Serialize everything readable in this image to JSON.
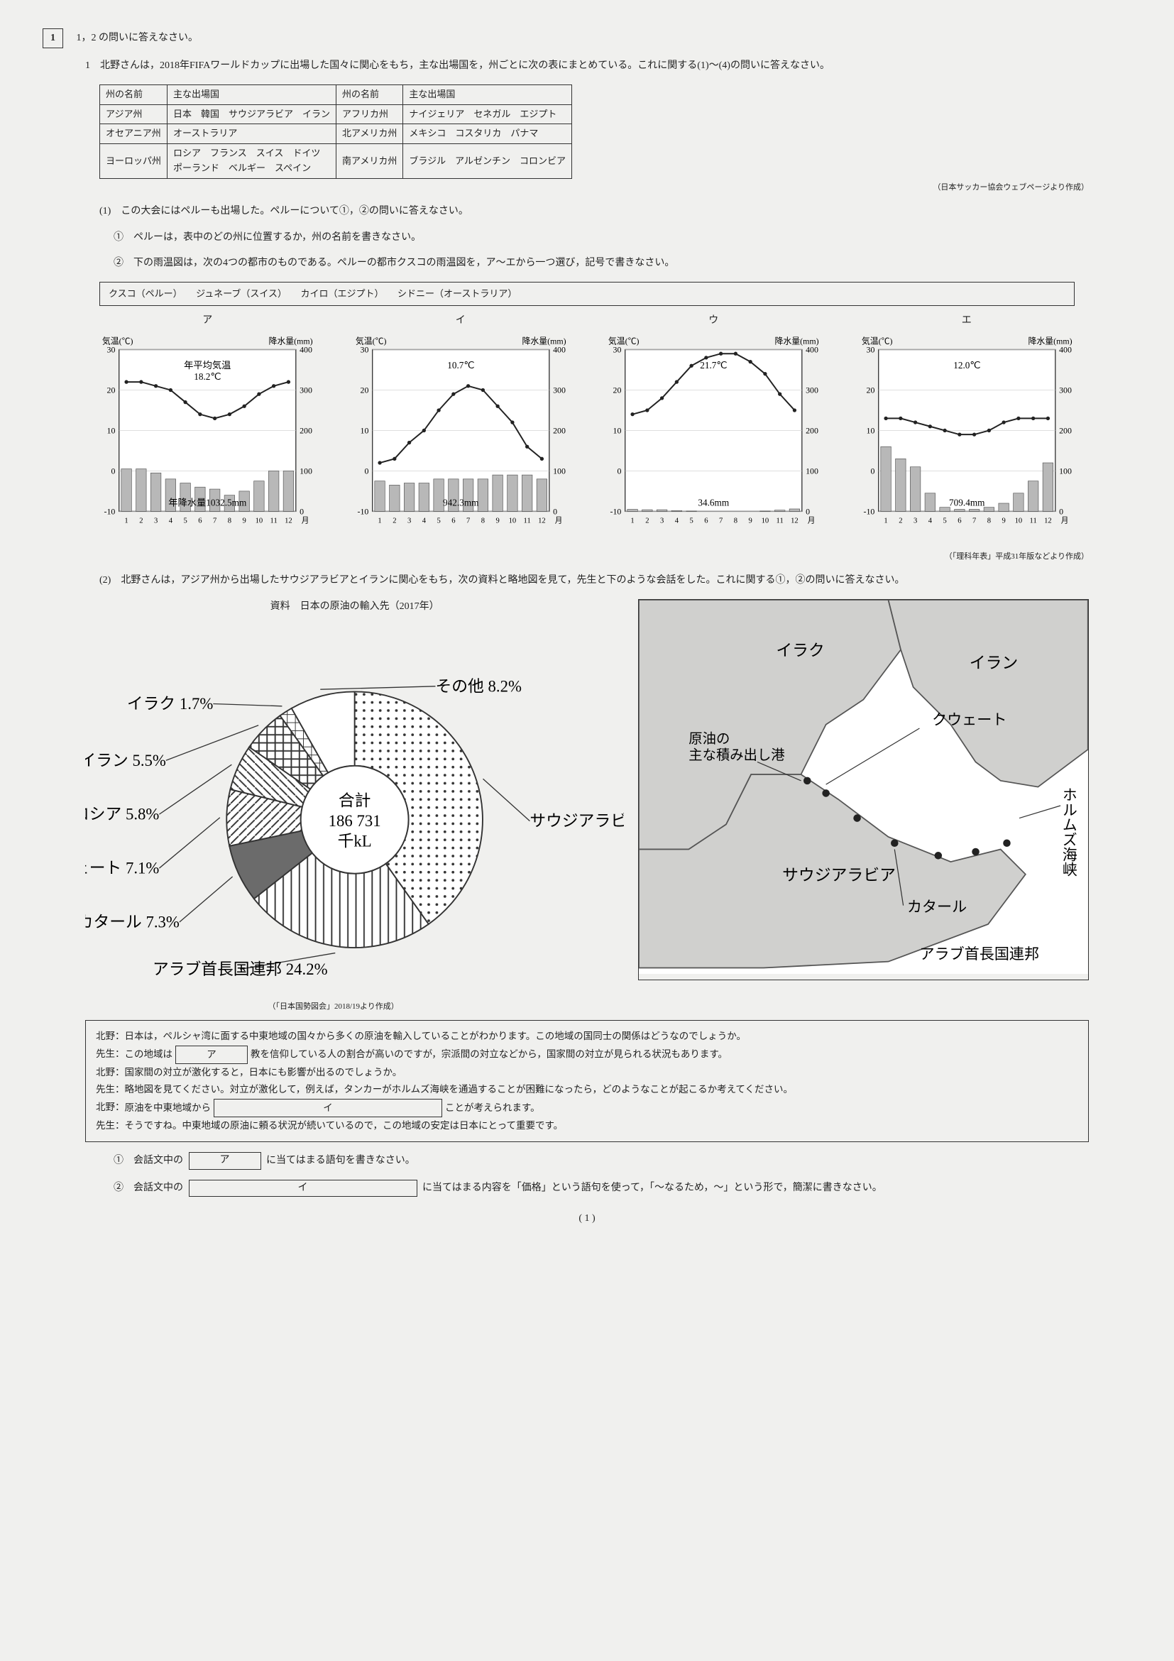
{
  "main_q": "1",
  "main_instr": "1，2 の問いに答えなさい。",
  "q1_text": "1　北野さんは，2018年FIFAワールドカップに出場した国々に関心をもち，主な出場国を，州ごとに次の表にまとめている。これに関する(1)～(4)の問いに答えなさい。",
  "table": {
    "headers": [
      "州の名前",
      "主な出場国",
      "州の名前",
      "主な出場国"
    ],
    "rows": [
      [
        "アジア州",
        "日本　韓国　サウジアラビア　イラン",
        "アフリカ州",
        "ナイジェリア　セネガル　エジプト"
      ],
      [
        "オセアニア州",
        "オーストラリア",
        "北アメリカ州",
        "メキシコ　コスタリカ　パナマ"
      ],
      [
        "ヨーロッパ州",
        "ロシア　フランス　スイス　ドイツ\nポーランド　ベルギー　スペイン",
        "南アメリカ州",
        "ブラジル　アルゼンチン　コロンビア"
      ]
    ],
    "source": "（日本サッカー協会ウェブページより作成）"
  },
  "q1_1": "(1)　この大会にはペルーも出場した。ペルーについて①，②の問いに答えなさい。",
  "q1_1_1": "①　ペルーは，表中のどの州に位置するか，州の名前を書きなさい。",
  "q1_1_2": "②　下の雨温図は，次の4つの都市のものである。ペルーの都市クスコの雨温図を，ア～エから一つ選び，記号で書きなさい。",
  "cities": "クスコ（ペルー）　　ジュネーブ（スイス）　　カイロ（エジプト）　　シドニー（オーストラリア）",
  "climographs": {
    "temp_axis_label": "気温(℃)",
    "precip_axis_label": "降水量(mm)",
    "month_label": "月",
    "temp_ticks": [
      -10,
      0,
      10,
      20,
      30
    ],
    "precip_ticks": [
      0,
      100,
      200,
      300,
      400
    ],
    "months": [
      1,
      2,
      3,
      4,
      5,
      6,
      7,
      8,
      9,
      10,
      11,
      12
    ],
    "charts": [
      {
        "label": "ア",
        "avg_temp_label": "年平均気温",
        "avg_temp": "18.2℃",
        "annual_precip_label": "年降水量1032.5mm",
        "temps": [
          22,
          22,
          21,
          20,
          17,
          14,
          13,
          14,
          16,
          19,
          21,
          22
        ],
        "precip": [
          105,
          105,
          95,
          80,
          70,
          60,
          55,
          40,
          50,
          75,
          100,
          100
        ]
      },
      {
        "label": "イ",
        "avg_temp": "10.7℃",
        "annual_precip": "942.3mm",
        "temps": [
          2,
          3,
          7,
          10,
          15,
          19,
          21,
          20,
          16,
          12,
          6,
          3
        ],
        "precip": [
          75,
          65,
          70,
          70,
          80,
          80,
          80,
          80,
          90,
          90,
          90,
          80
        ]
      },
      {
        "label": "ウ",
        "avg_temp": "21.7℃",
        "annual_precip": "34.6mm",
        "temps": [
          14,
          15,
          18,
          22,
          26,
          28,
          29,
          29,
          27,
          24,
          19,
          15
        ],
        "precip": [
          5,
          4,
          4,
          2,
          1,
          0,
          0,
          0,
          0,
          1,
          3,
          6
        ]
      },
      {
        "label": "エ",
        "avg_temp": "12.0℃",
        "annual_precip": "709.4mm",
        "temps": [
          13,
          13,
          12,
          11,
          10,
          9,
          9,
          10,
          12,
          13,
          13,
          13
        ],
        "precip": [
          160,
          130,
          110,
          45,
          10,
          5,
          5,
          10,
          20,
          45,
          75,
          120
        ]
      }
    ],
    "source": "（「理科年表」平成31年版などより作成）",
    "bar_color": "#b8b8b8",
    "line_color": "#222222",
    "bg": "#ffffff",
    "grid": "#cccccc"
  },
  "q1_2": "(2)　北野さんは，アジア州から出場したサウジアラビアとイランに関心をもち，次の資料と略地図を見て，先生と下のような会話をした。これに関する①，②の問いに答えなさい。",
  "pie": {
    "title": "資料　日本の原油の輸入先（2017年）",
    "center_label": "合計",
    "center_value": "186 731",
    "center_unit": "千kL",
    "slices": [
      {
        "name": "サウジアラビア",
        "pct": 40.2,
        "color": "#ffffff",
        "pattern": "dots"
      },
      {
        "name": "アラブ首長国連邦",
        "pct": 24.2,
        "color": "#ffffff",
        "pattern": "vlines"
      },
      {
        "name": "カタール",
        "pct": 7.3,
        "color": "#6b6b6b",
        "pattern": "solid"
      },
      {
        "name": "クウェート",
        "pct": 7.1,
        "color": "#ffffff",
        "pattern": "diag"
      },
      {
        "name": "ロシア",
        "pct": 5.8,
        "color": "#ffffff",
        "pattern": "hatch"
      },
      {
        "name": "イラン",
        "pct": 5.5,
        "color": "#ffffff",
        "pattern": "cross"
      },
      {
        "name": "イラク",
        "pct": 1.7,
        "color": "#ffffff",
        "pattern": "grid"
      },
      {
        "name": "その他",
        "pct": 8.2,
        "color": "#ffffff",
        "pattern": "none"
      }
    ],
    "source": "（「日本国勢図会」2018/19より作成）"
  },
  "map": {
    "labels": [
      "イラク",
      "イラン",
      "クウェート",
      "サウジアラビア",
      "カタール",
      "アラブ首長国連邦",
      "ホルムズ海峡"
    ],
    "marker": "原油の\n主な積み出し港",
    "land": "#d0d0ce",
    "sea": "#ffffff"
  },
  "dialogue": {
    "lines": [
      {
        "sp": "北野",
        "text": "日本は，ペルシャ湾に面する中東地域の国々から多くの原油を輸入していることがわかります。この地域の国同士の関係はどうなのでしょうか。"
      },
      {
        "sp": "先生",
        "text_pre": "この地域は",
        "blank_a": "ア",
        "text_post": "教を信仰している人の割合が高いのですが，宗派間の対立などから，国家間の対立が見られる状況もあります。"
      },
      {
        "sp": "北野",
        "text": "国家間の対立が激化すると，日本にも影響が出るのでしょうか。"
      },
      {
        "sp": "先生",
        "text": "略地図を見てください。対立が激化して，例えば，タンカーがホルムズ海峡を通過することが困難になったら，どのようなことが起こるか考えてください。"
      },
      {
        "sp": "北野",
        "text_pre": "原油を中東地域から",
        "blank_i": "イ",
        "text_post": "ことが考えられます。"
      },
      {
        "sp": "先生",
        "text": "そうですね。中東地域の原油に頼る状況が続いているので，この地域の安定は日本にとって重要です。"
      }
    ]
  },
  "q1_2_1_pre": "①　会話文中の",
  "q1_2_1_blank": "ア",
  "q1_2_1_post": "に当てはまる語句を書きなさい。",
  "q1_2_2_pre": "②　会話文中の",
  "q1_2_2_blank": "イ",
  "q1_2_2_post": "に当てはまる内容を「価格」という語句を使って，「～なるため，～」という形で，簡潔に書きなさい。",
  "page": "( 1 )"
}
